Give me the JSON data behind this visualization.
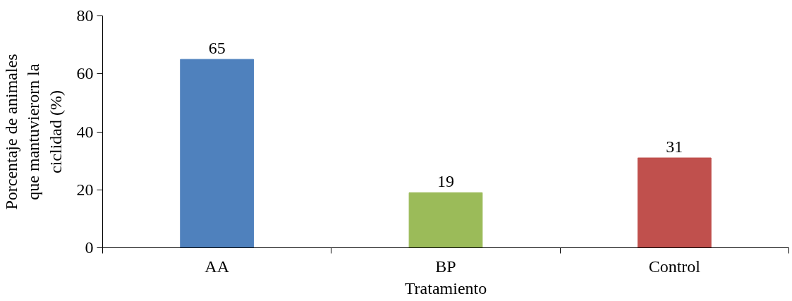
{
  "chart_data": {
    "type": "bar",
    "xlabel": "Tratamiento",
    "ylabel": "Porcentaje de animales que mantuvierorn la ciclidad (%)",
    "categories": [
      "AA",
      "BP",
      "Control"
    ],
    "values": [
      65,
      19,
      31
    ],
    "colors": [
      "#4f81bd",
      "#9bbb59",
      "#c0504d"
    ],
    "ylim": [
      0,
      80
    ],
    "yticks": [
      0,
      20,
      40,
      60,
      80
    ],
    "data_labels": true,
    "grid": false
  }
}
